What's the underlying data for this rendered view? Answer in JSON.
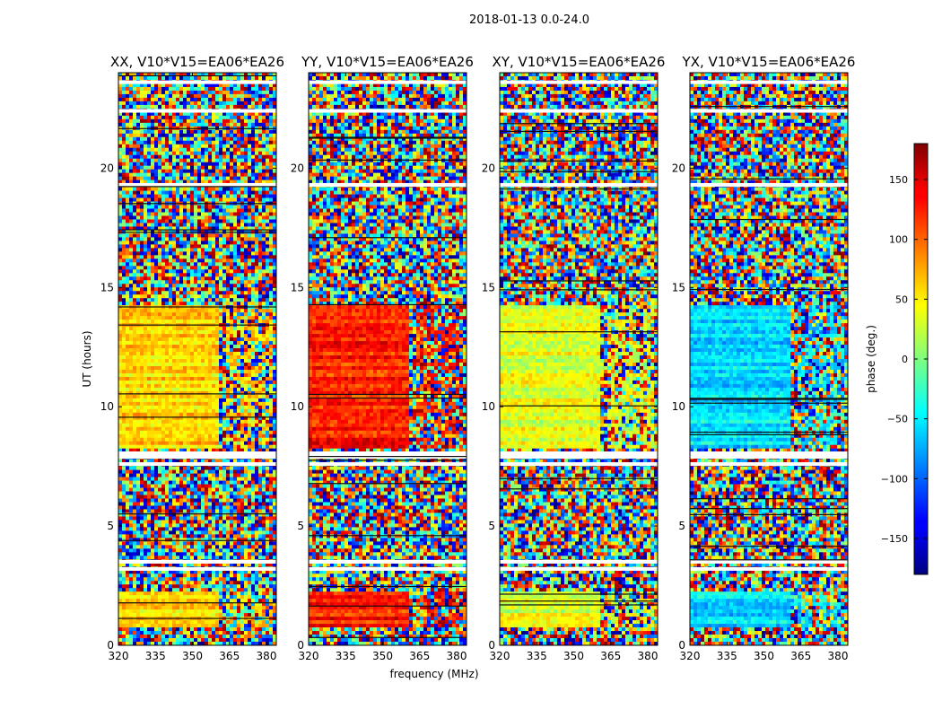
{
  "suptitle": "2018-01-13 0.0-24.0",
  "chart_data": {
    "type": "heatmap",
    "x_label": "frequency (MHz)",
    "y_label": "UT (hours)",
    "xlim": [
      320,
      384
    ],
    "ylim": [
      0,
      24
    ],
    "x_ticks": [
      320,
      335,
      350,
      365,
      380
    ],
    "y_ticks": [
      0,
      5,
      10,
      15,
      20
    ],
    "panels": [
      {
        "title": "XX, V10*V15=EA06*EA26",
        "coherent_phase_deg": 60
      },
      {
        "title": "YY, V10*V15=EA06*EA26",
        "coherent_phase_deg": 125
      },
      {
        "title": "XY, V10*V15=EA06*EA26",
        "coherent_phase_deg": 35
      },
      {
        "title": "YX, V10*V15=EA06*EA26",
        "coherent_phase_deg": -55
      }
    ],
    "coherent_ut_ranges": [
      [
        8.2,
        14.3
      ],
      [
        0.7,
        2.2
      ]
    ],
    "coherent_freq_ranges": [
      [
        320,
        361
      ],
      [
        364,
        382
      ]
    ],
    "flagged_ut_bands": [
      3.2,
      3.5,
      7.6,
      7.9,
      8.05,
      19.3,
      22.4,
      23.6
    ],
    "colorbar": {
      "label": "phase (deg.)",
      "range": [
        -180,
        180
      ],
      "ticks": [
        "150",
        "100",
        "50",
        "0",
        "−50",
        "−100",
        "−150"
      ],
      "tick_values": [
        150,
        100,
        50,
        0,
        -50,
        -100,
        -150
      ]
    }
  }
}
